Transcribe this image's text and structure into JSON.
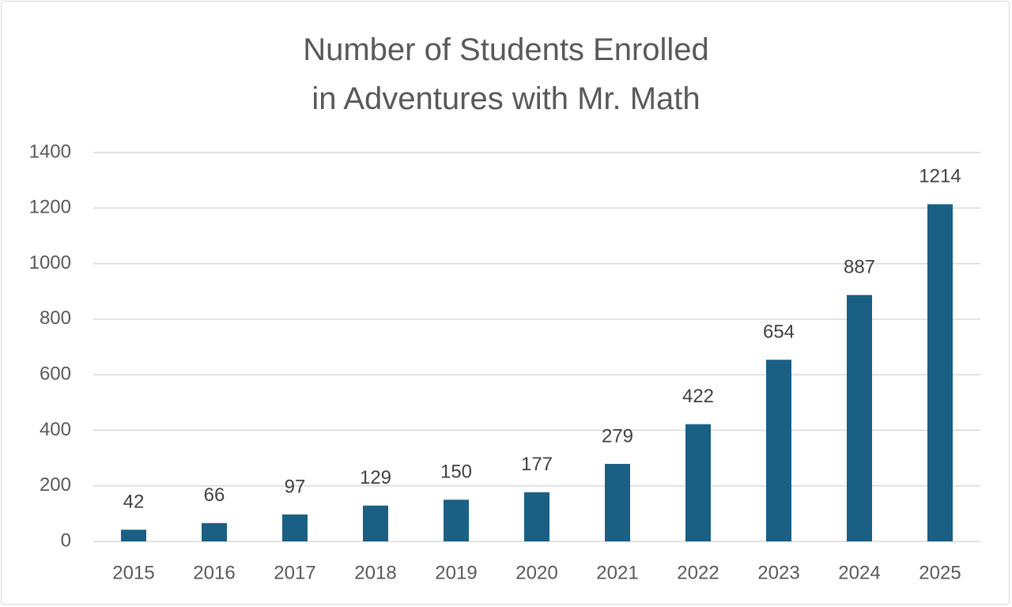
{
  "chart_data": {
    "type": "bar",
    "title": "Number of Students Enrolled in Adventures with Mr. Math",
    "categories": [
      "2015",
      "2016",
      "2017",
      "2018",
      "2019",
      "2020",
      "2021",
      "2022",
      "2023",
      "2024",
      "2025"
    ],
    "values": [
      42,
      66,
      97,
      129,
      150,
      177,
      279,
      422,
      654,
      887,
      1214
    ],
    "color": "#1a5f84",
    "ylim": [
      0,
      1400
    ],
    "yticks": [
      0,
      200,
      400,
      600,
      800,
      1000,
      1200,
      1400
    ],
    "grid": true,
    "data_labels": true
  }
}
